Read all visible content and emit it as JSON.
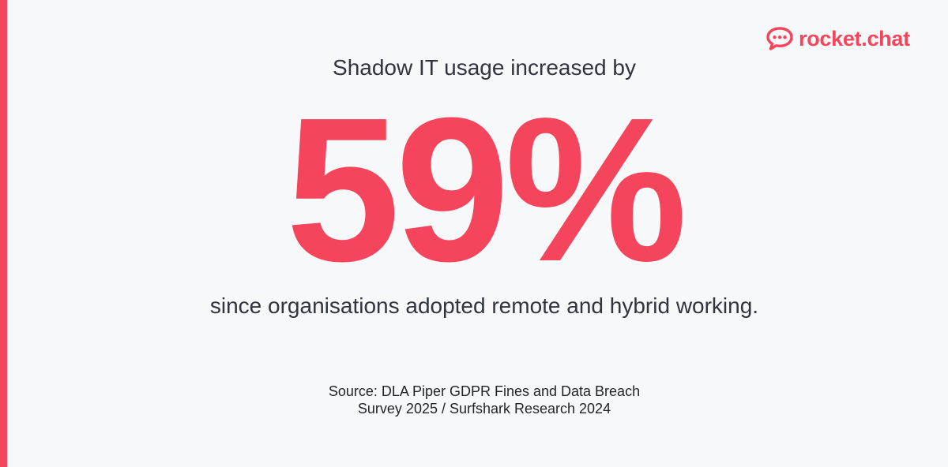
{
  "brand": {
    "name": "rocket.chat",
    "logo_icon": "rocket-chat-bubble-icon",
    "accent_color": "#f5455c"
  },
  "headline": "Shadow IT usage increased by",
  "stat": {
    "value": "59%"
  },
  "subline": "since organisations adopted remote and hybrid working.",
  "source": {
    "line1": "Source: DLA Piper GDPR Fines and Data Breach",
    "line2": "Survey 2025 / Surfshark Research 2024"
  },
  "colors": {
    "background": "#f7f8fa",
    "text": "#2f343d"
  }
}
